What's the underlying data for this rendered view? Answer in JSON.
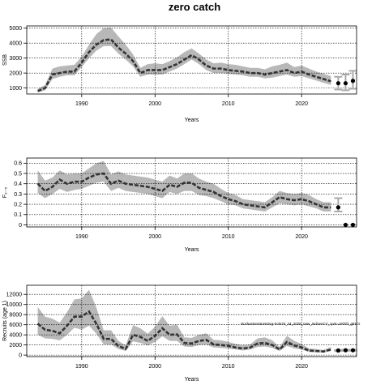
{
  "title": "zero catch",
  "chart_data": [
    {
      "type": "line",
      "ylabel": "SSB",
      "xlabel": "Years",
      "xlim": [
        1982.5,
        2027.5
      ],
      "ylim": [
        600,
        5150
      ],
      "xticks": [
        1990,
        2000,
        2010,
        2020
      ],
      "yticks": [
        1000,
        2000,
        3000,
        4000,
        5000
      ],
      "grid": true,
      "x": [
        1984,
        1985,
        1986,
        1987,
        1988,
        1989,
        1990,
        1991,
        1992,
        1993,
        1994,
        1995,
        1996,
        1997,
        1998,
        1999,
        2000,
        2001,
        2002,
        2003,
        2004,
        2005,
        2006,
        2007,
        2008,
        2009,
        2010,
        2011,
        2012,
        2013,
        2014,
        2015,
        2016,
        2017,
        2018,
        2019,
        2020,
        2021,
        2022,
        2023,
        2024
      ],
      "series": [
        {
          "role": "estimate",
          "values": [
            800,
            1000,
            1900,
            2000,
            2100,
            2100,
            2700,
            3400,
            3900,
            4200,
            4250,
            3700,
            3300,
            2800,
            2000,
            2200,
            2200,
            2200,
            2400,
            2600,
            2900,
            3200,
            2900,
            2500,
            2300,
            2300,
            2200,
            2150,
            2100,
            2000,
            2000,
            1900,
            2000,
            2100,
            2200,
            2000,
            2100,
            1900,
            1750,
            1600,
            1450
          ],
          "lower": [
            700,
            850,
            1600,
            1750,
            1850,
            1850,
            2400,
            3000,
            3500,
            3800,
            3800,
            3300,
            2900,
            2450,
            1750,
            1900,
            1900,
            1900,
            2100,
            2300,
            2600,
            2900,
            2600,
            2200,
            2000,
            2000,
            1950,
            1900,
            1850,
            1750,
            1750,
            1650,
            1700,
            1800,
            1900,
            1750,
            1800,
            1650,
            1500,
            1350,
            1200
          ],
          "upper": [
            950,
            1200,
            2300,
            2450,
            2500,
            2550,
            3100,
            3900,
            4600,
            5000,
            5050,
            4450,
            3900,
            3250,
            2350,
            2600,
            2650,
            2600,
            2800,
            3050,
            3400,
            3650,
            3300,
            2900,
            2650,
            2700,
            2600,
            2550,
            2450,
            2350,
            2350,
            2250,
            2450,
            2550,
            2700,
            2400,
            2500,
            2300,
            2100,
            1950,
            1800
          ]
        },
        {
          "role": "projection",
          "x": [
            2025,
            2026,
            2027
          ],
          "values": [
            1320,
            1320,
            1480
          ],
          "lower": [
            900,
            850,
            950
          ],
          "upper": [
            1750,
            1900,
            2150
          ]
        }
      ]
    },
    {
      "type": "line",
      "ylabel": "F₂₋₅",
      "xlabel": "Years",
      "xlim": [
        1982.5,
        2027.5
      ],
      "ylim": [
        -0.02,
        0.65
      ],
      "xticks": [
        1990,
        2000,
        2010,
        2020
      ],
      "yticks": [
        0.0,
        0.1,
        0.2,
        0.3,
        0.4,
        0.5,
        0.6
      ],
      "grid": true,
      "x": [
        1984,
        1985,
        1986,
        1987,
        1988,
        1989,
        1990,
        1991,
        1992,
        1993,
        1994,
        1995,
        1996,
        1997,
        1998,
        1999,
        2000,
        2001,
        2002,
        2003,
        2004,
        2005,
        2006,
        2007,
        2008,
        2009,
        2010,
        2011,
        2012,
        2013,
        2014,
        2015,
        2016,
        2017,
        2018,
        2019,
        2020,
        2021,
        2022,
        2023,
        2024
      ],
      "series": [
        {
          "role": "estimate",
          "values": [
            0.4,
            0.33,
            0.37,
            0.44,
            0.4,
            0.42,
            0.42,
            0.46,
            0.49,
            0.5,
            0.4,
            0.43,
            0.4,
            0.39,
            0.38,
            0.37,
            0.35,
            0.33,
            0.39,
            0.37,
            0.41,
            0.41,
            0.36,
            0.34,
            0.32,
            0.28,
            0.25,
            0.23,
            0.2,
            0.19,
            0.18,
            0.17,
            0.22,
            0.27,
            0.25,
            0.24,
            0.25,
            0.23,
            0.2,
            0.17,
            0.17
          ],
          "lower": [
            0.31,
            0.26,
            0.3,
            0.35,
            0.32,
            0.34,
            0.35,
            0.38,
            0.41,
            0.42,
            0.33,
            0.36,
            0.33,
            0.32,
            0.31,
            0.3,
            0.28,
            0.26,
            0.32,
            0.3,
            0.33,
            0.33,
            0.29,
            0.28,
            0.26,
            0.23,
            0.2,
            0.19,
            0.16,
            0.15,
            0.14,
            0.13,
            0.17,
            0.21,
            0.2,
            0.19,
            0.2,
            0.18,
            0.16,
            0.13,
            0.13
          ],
          "upper": [
            0.53,
            0.43,
            0.46,
            0.53,
            0.49,
            0.5,
            0.5,
            0.55,
            0.6,
            0.62,
            0.49,
            0.52,
            0.49,
            0.48,
            0.47,
            0.46,
            0.44,
            0.42,
            0.48,
            0.45,
            0.5,
            0.5,
            0.45,
            0.42,
            0.4,
            0.35,
            0.31,
            0.29,
            0.25,
            0.24,
            0.23,
            0.22,
            0.27,
            0.33,
            0.31,
            0.3,
            0.31,
            0.29,
            0.25,
            0.22,
            0.22
          ]
        },
        {
          "role": "projection",
          "x": [
            2025,
            2026,
            2027
          ],
          "values": [
            0.17,
            0.0,
            0.0
          ],
          "lower": [
            0.13,
            0.0,
            0.0
          ],
          "upper": [
            0.26,
            0.0,
            0.0
          ]
        }
      ]
    },
    {
      "type": "line",
      "ylabel": "Recruits (age 1)",
      "xlabel": "Years",
      "xlim": [
        1982.5,
        2027.5
      ],
      "ylim": [
        -300,
        13800
      ],
      "xticks": [
        1990,
        2000,
        2010,
        2020
      ],
      "yticks": [
        0,
        2000,
        4000,
        6000,
        8000,
        10000,
        12000
      ],
      "grid": true,
      "annotation": "stockassessmentorg-Sole20_24_2025_new_IndicesCV_cpnt=19283_g81cs",
      "x": [
        1984,
        1985,
        1986,
        1987,
        1988,
        1989,
        1990,
        1991,
        1992,
        1993,
        1994,
        1995,
        1996,
        1997,
        1998,
        1999,
        2000,
        2001,
        2002,
        2003,
        2004,
        2005,
        2006,
        2007,
        2008,
        2009,
        2010,
        2011,
        2012,
        2013,
        2014,
        2015,
        2016,
        2017,
        2018,
        2019,
        2020,
        2021,
        2022,
        2023,
        2024
      ],
      "series": [
        {
          "role": "estimate",
          "values": [
            6200,
            5000,
            4800,
            4300,
            5800,
            7600,
            7600,
            8600,
            6200,
            3200,
            3200,
            1800,
            1200,
            4000,
            3600,
            2800,
            3800,
            5300,
            4000,
            4100,
            2400,
            2300,
            2800,
            3000,
            2100,
            2000,
            1800,
            1500,
            1300,
            1500,
            2300,
            2400,
            2000,
            1100,
            2600,
            1900,
            1500,
            900,
            800,
            700,
            1100
          ],
          "lower": [
            4000,
            3300,
            3200,
            2900,
            4000,
            5400,
            5000,
            5800,
            4200,
            2100,
            2100,
            1200,
            800,
            2700,
            2400,
            1900,
            2600,
            3700,
            2800,
            2800,
            1700,
            1600,
            2000,
            2100,
            1500,
            1400,
            1300,
            1100,
            900,
            1100,
            1600,
            1700,
            1400,
            800,
            1800,
            1300,
            1100,
            600,
            550,
            500,
            800
          ],
          "upper": [
            9500,
            7600,
            7200,
            6400,
            8500,
            11000,
            11200,
            12900,
            9400,
            4900,
            4900,
            2800,
            1900,
            5900,
            5300,
            4200,
            5600,
            7700,
            5800,
            6000,
            3500,
            3400,
            4000,
            4300,
            3000,
            2900,
            2600,
            2200,
            1900,
            2100,
            3300,
            3500,
            2900,
            1600,
            3800,
            2800,
            2200,
            1300,
            1200,
            1000,
            1600
          ]
        },
        {
          "role": "projection",
          "x": [
            2025,
            2026,
            2027
          ],
          "values": [
            900,
            950,
            950
          ],
          "lower": [
            800,
            850,
            850
          ],
          "upper": [
            1000,
            1050,
            1050
          ]
        }
      ]
    }
  ]
}
